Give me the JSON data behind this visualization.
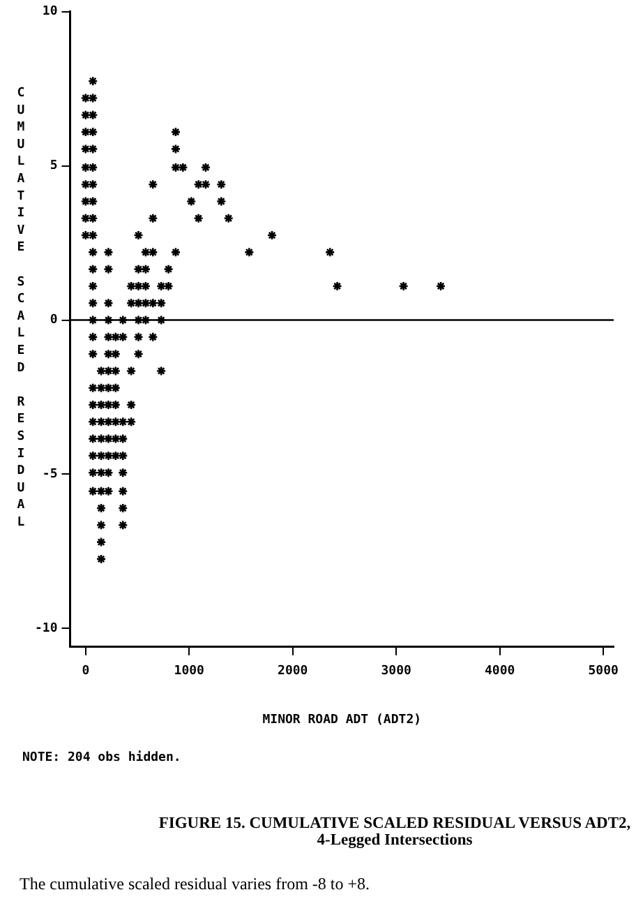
{
  "chart_data": {
    "type": "scatter",
    "title": "FIGURE 15. CUMULATIVE SCALED RESIDUAL VERSUS ADT2,\n4-Legged Intersections",
    "xlabel": "MINOR ROAD ADT (ADT2)",
    "ylabel": "CUMULATIVE SCALED RESIDUAL",
    "annotations": [
      "NOTE: 204 obs hidden.",
      "The cumulative scaled residual varies from -8 to +8."
    ],
    "series": [
      {
        "color": "#000000",
        "x": [
          70,
          0,
          70,
          0,
          70,
          0,
          70,
          870,
          0,
          70,
          870,
          0,
          70,
          870,
          940,
          1160,
          0,
          70,
          650,
          1090,
          1160,
          1310,
          0,
          70,
          1020,
          1310,
          0,
          70,
          650,
          1090,
          1380,
          0,
          70,
          510,
          1800,
          70,
          220,
          580,
          650,
          870,
          1580,
          2360,
          70,
          220,
          510,
          580,
          800,
          70,
          440,
          510,
          580,
          730,
          800,
          2430,
          3070,
          3430,
          70,
          220,
          440,
          510,
          580,
          650,
          730,
          70,
          220,
          360,
          510,
          580,
          730,
          70,
          220,
          290,
          360,
          510,
          650,
          70,
          220,
          290,
          510,
          150,
          220,
          290,
          440,
          730,
          70,
          150,
          220,
          290,
          70,
          150,
          220,
          290,
          440,
          70,
          150,
          220,
          290,
          360,
          440,
          70,
          150,
          220,
          290,
          360,
          70,
          150,
          220,
          290,
          360,
          70,
          150,
          220,
          360,
          70,
          150,
          220,
          360,
          150,
          360,
          150,
          360,
          150,
          150
        ],
        "values": [
          7.75,
          7.2,
          7.2,
          6.65,
          6.65,
          6.1,
          6.1,
          6.1,
          5.55,
          5.55,
          5.55,
          4.95,
          4.95,
          4.95,
          4.95,
          4.95,
          4.4,
          4.4,
          4.4,
          4.4,
          4.4,
          4.4,
          3.85,
          3.85,
          3.85,
          3.85,
          3.3,
          3.3,
          3.3,
          3.3,
          3.3,
          2.75,
          2.75,
          2.75,
          2.75,
          2.2,
          2.2,
          2.2,
          2.2,
          2.2,
          2.2,
          2.2,
          1.65,
          1.65,
          1.65,
          1.65,
          1.65,
          1.1,
          1.1,
          1.1,
          1.1,
          1.1,
          1.1,
          1.1,
          1.1,
          1.1,
          0.55,
          0.55,
          0.55,
          0.55,
          0.55,
          0.55,
          0.55,
          0,
          0,
          0,
          0,
          0,
          0,
          -0.55,
          -0.55,
          -0.55,
          -0.55,
          -0.55,
          -0.55,
          -1.1,
          -1.1,
          -1.1,
          -1.1,
          -1.65,
          -1.65,
          -1.65,
          -1.65,
          -1.65,
          -2.2,
          -2.2,
          -2.2,
          -2.2,
          -2.75,
          -2.75,
          -2.75,
          -2.75,
          -2.75,
          -3.3,
          -3.3,
          -3.3,
          -3.3,
          -3.3,
          -3.3,
          -3.85,
          -3.85,
          -3.85,
          -3.85,
          -3.85,
          -4.4,
          -4.4,
          -4.4,
          -4.4,
          -4.4,
          -4.95,
          -4.95,
          -4.95,
          -4.95,
          -5.55,
          -5.55,
          -5.55,
          -5.55,
          -6.1,
          -6.1,
          -6.65,
          -6.65,
          -7.2,
          -7.75
        ]
      }
    ],
    "xlim": [
      -150,
      5100
    ],
    "xticks": [
      0,
      1000,
      2000,
      3000,
      4000,
      5000
    ],
    "ylim": [
      -10.6,
      10
    ],
    "yticks": [
      -10,
      -5,
      0,
      5,
      10
    ],
    "ref_lines": [
      {
        "axis": "y",
        "value": 0,
        "color": "#000000"
      }
    ],
    "marker": "cross",
    "grid": false,
    "legend": false
  }
}
